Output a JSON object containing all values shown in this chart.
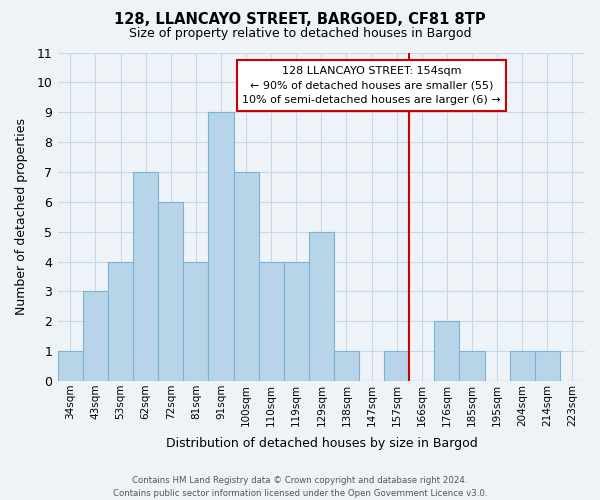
{
  "title": "128, LLANCAYO STREET, BARGOED, CF81 8TP",
  "subtitle": "Size of property relative to detached houses in Bargod",
  "xlabel": "Distribution of detached houses by size in Bargod",
  "ylabel": "Number of detached properties",
  "categories": [
    "34sqm",
    "43sqm",
    "53sqm",
    "62sqm",
    "72sqm",
    "81sqm",
    "91sqm",
    "100sqm",
    "110sqm",
    "119sqm",
    "129sqm",
    "138sqm",
    "147sqm",
    "157sqm",
    "166sqm",
    "176sqm",
    "185sqm",
    "195sqm",
    "204sqm",
    "214sqm",
    "223sqm"
  ],
  "values": [
    1,
    3,
    4,
    7,
    6,
    4,
    9,
    7,
    4,
    4,
    5,
    1,
    0,
    1,
    0,
    2,
    1,
    0,
    1,
    1,
    0
  ],
  "bar_color": "#b8d4e8",
  "bar_edge_color": "#7ab4d4",
  "grid_color": "#c8d8e8",
  "vline_x_index": 13.5,
  "vline_color": "#cc0000",
  "annotation_title": "128 LLANCAYO STREET: 154sqm",
  "annotation_line1": "← 90% of detached houses are smaller (55)",
  "annotation_line2": "10% of semi-detached houses are larger (6) →",
  "annotation_box_color": "#ffffff",
  "annotation_box_edge": "#cc0000",
  "footer_line1": "Contains HM Land Registry data © Crown copyright and database right 2024.",
  "footer_line2": "Contains public sector information licensed under the Open Government Licence v3.0.",
  "ylim": [
    0,
    11
  ],
  "yticks": [
    0,
    1,
    2,
    3,
    4,
    5,
    6,
    7,
    8,
    9,
    10,
    11
  ],
  "background_color": "#eef3f8"
}
